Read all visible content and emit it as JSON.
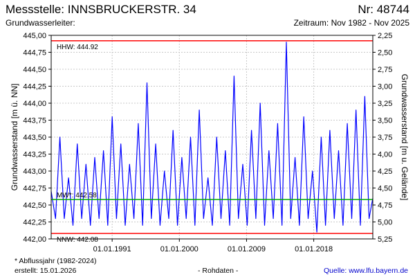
{
  "header": {
    "station_title": "Messstelle: INNSBRUCKERSTR. 34",
    "station_number": "Nr: 48744",
    "aquifer_label": "Grundwasserleiter:",
    "period": "Zeitraum: Nov 1982 - Nov 2025"
  },
  "footer": {
    "note": "* Abflussjahr (1982-2024)",
    "created": "erstellt:  15.01.2026",
    "data_type": "- Rohdaten -",
    "source": "Quelle: www.lfu.bayern.de"
  },
  "colors": {
    "series": "#0000ff",
    "reference_lines": "#ff0000",
    "mean_line": "#00aa00",
    "grid": "#c8c8c8"
  },
  "chart_data": {
    "type": "line",
    "title": "",
    "ylabel": "Grundwasserstand [m ü. NN]",
    "y2label": "Grundwasserstand [m u. Gelände]",
    "ylim": [
      442.0,
      445.0
    ],
    "y_ticks": [
      "442,00",
      "442,25",
      "442,50",
      "442,75",
      "443,00",
      "443,25",
      "443,50",
      "443,75",
      "444,00",
      "444,25",
      "444,50",
      "444,75",
      "445,00"
    ],
    "y2_ticks": [
      "2,25",
      "2,50",
      "2,75",
      "3,00",
      "3,25",
      "3,50",
      "3,75",
      "4,00",
      "4,25",
      "4,50",
      "4,75",
      "5,00",
      "5,25"
    ],
    "x_range": [
      "1982-11-01",
      "2025-11-30"
    ],
    "x_ticks": [
      {
        "date": "1991-01-01",
        "label": "01.01.1991"
      },
      {
        "date": "2000-01-01",
        "label": "01.01.2000"
      },
      {
        "date": "2009-01-01",
        "label": "01.01.2009"
      },
      {
        "date": "2018-01-01",
        "label": "01.01.2018"
      }
    ],
    "grid": true,
    "reference_lines": [
      {
        "label": "HHW: 444.92",
        "value": 444.92
      },
      {
        "label": "MW*: 442.58",
        "value": 442.58
      },
      {
        "label": "NNW: 442.08",
        "value": 442.08
      }
    ],
    "series": [
      {
        "x": [
          "1982-11-01",
          "1983-06-01",
          "1984-01-01",
          "1984-08-01",
          "1985-03-01",
          "1985-10-01",
          "1986-05-01",
          "1986-12-01",
          "1987-07-01",
          "1988-02-01",
          "1988-09-01",
          "1989-04-01",
          "1989-11-01",
          "1990-06-01",
          "1991-01-01",
          "1991-08-01",
          "1992-03-01",
          "1992-10-01",
          "1993-05-01",
          "1993-12-01",
          "1994-07-01",
          "1995-02-01",
          "1995-09-01",
          "1996-04-01",
          "1996-11-01",
          "1997-06-01",
          "1998-01-01",
          "1998-08-01",
          "1999-03-01",
          "1999-10-01",
          "2000-05-01",
          "2000-12-01",
          "2001-07-01",
          "2002-02-01",
          "2002-09-01",
          "2003-04-01",
          "2003-11-01",
          "2004-06-01",
          "2005-01-01",
          "2005-08-01",
          "2006-03-01",
          "2006-10-01",
          "2007-05-01",
          "2007-12-01",
          "2008-07-01",
          "2009-02-01",
          "2009-09-01",
          "2010-04-01",
          "2010-11-01",
          "2011-06-01",
          "2012-01-01",
          "2012-08-01",
          "2013-03-01",
          "2013-10-01",
          "2014-05-01",
          "2014-12-01",
          "2015-07-01",
          "2016-02-01",
          "2016-09-01",
          "2017-04-01",
          "2017-11-01",
          "2018-06-01",
          "2019-01-01",
          "2019-08-01",
          "2020-03-01",
          "2020-10-01",
          "2021-05-01",
          "2021-12-01",
          "2022-07-01",
          "2023-02-01",
          "2023-09-01",
          "2024-04-01",
          "2024-11-01",
          "2025-06-01",
          "2025-11-30"
        ],
        "y": [
          442.7,
          442.3,
          443.5,
          442.3,
          442.9,
          442.2,
          443.4,
          442.3,
          443.1,
          442.2,
          443.2,
          442.3,
          443.3,
          442.2,
          443.8,
          442.3,
          443.4,
          442.2,
          443.1,
          442.3,
          443.7,
          442.2,
          444.3,
          442.3,
          443.4,
          442.2,
          443.0,
          442.3,
          443.6,
          442.2,
          443.2,
          442.3,
          443.5,
          442.2,
          443.9,
          442.3,
          442.9,
          442.2,
          443.5,
          442.3,
          443.3,
          442.2,
          444.4,
          442.3,
          443.1,
          442.2,
          443.6,
          442.3,
          444.0,
          442.2,
          443.3,
          442.3,
          443.7,
          442.2,
          444.9,
          442.3,
          443.2,
          442.2,
          443.8,
          442.3,
          443.0,
          442.1,
          443.5,
          442.2,
          443.6,
          442.3,
          443.3,
          442.2,
          443.7,
          442.3,
          443.9,
          442.2,
          444.1,
          442.3,
          442.6
        ]
      }
    ]
  }
}
